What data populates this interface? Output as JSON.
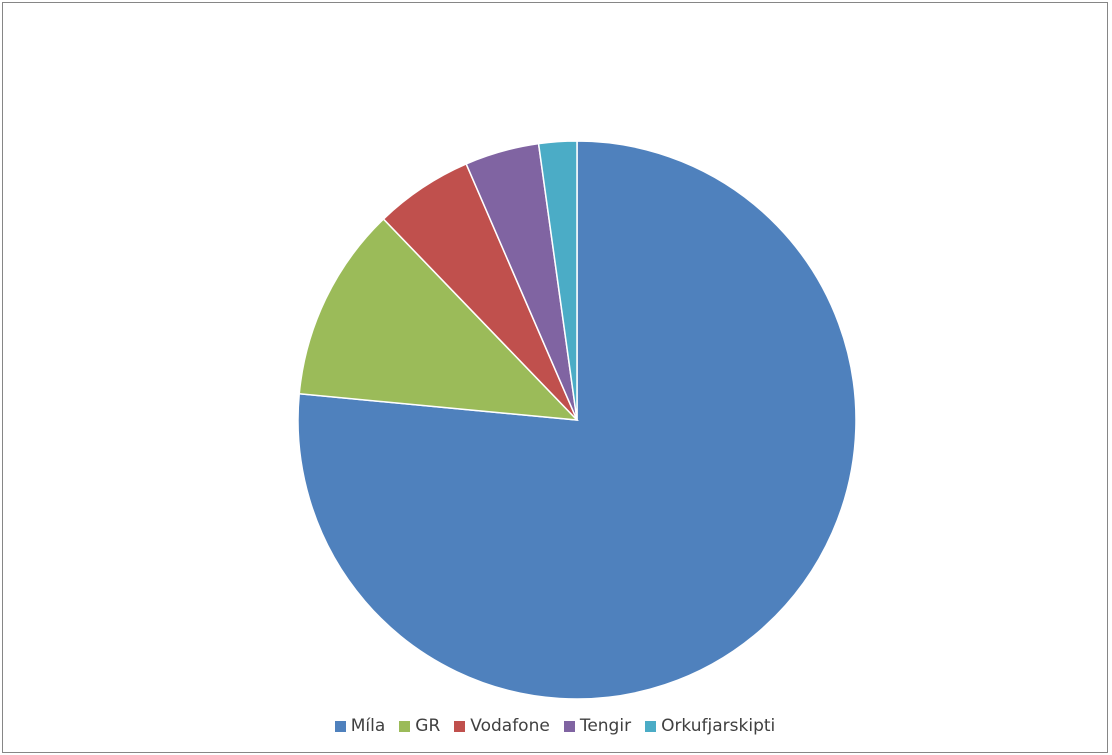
{
  "chart_data": {
    "type": "pie",
    "title": "",
    "categories": [
      "Míla",
      "GR",
      "Vodafone",
      "Tengir",
      "Orkufjarskipti"
    ],
    "values": [
      76.5,
      11.3,
      5.7,
      4.3,
      2.2
    ],
    "unit": "share",
    "start_angle": "12 o'clock",
    "direction": "clockwise",
    "legend_position": "bottom",
    "series": [
      {
        "name": "Míla",
        "value": 76.5,
        "color": "#4f81bd"
      },
      {
        "name": "GR",
        "value": 11.3,
        "color": "#9bbb59"
      },
      {
        "name": "Vodafone",
        "value": 5.7,
        "color": "#c0504d"
      },
      {
        "name": "Tengir",
        "value": 4.3,
        "color": "#8064a2"
      },
      {
        "name": "Orkufjarskipti",
        "value": 2.2,
        "color": "#4bacc6"
      }
    ]
  }
}
